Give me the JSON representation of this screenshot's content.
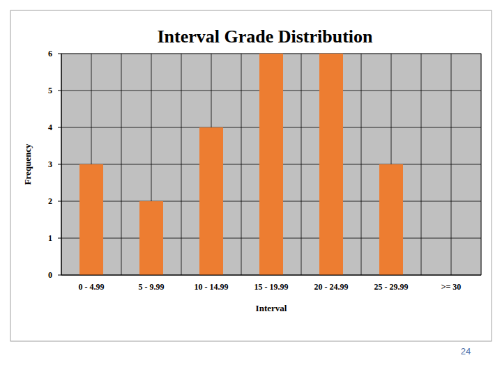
{
  "chart_data": {
    "type": "bar",
    "title": "Interval Grade Distribution",
    "x_label": "Interval",
    "y_label": "Frequency",
    "categories": [
      "0 - 4.99",
      "5 - 9.99",
      "10 - 14.99",
      "15 - 19.99",
      "20 - 24.99",
      "25 - 29.99",
      ">= 30"
    ],
    "values": [
      3,
      2,
      4,
      6,
      6,
      3,
      0
    ],
    "color": "#ed7d31",
    "ylim": [
      0,
      6
    ],
    "yticks": [
      0,
      1,
      2,
      3,
      4,
      5,
      6
    ],
    "grid": true,
    "annotations": [
      "24"
    ]
  }
}
